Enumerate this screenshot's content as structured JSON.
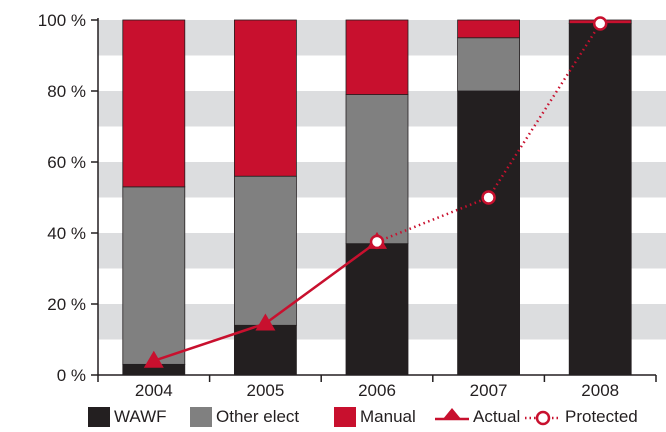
{
  "chart_data": {
    "type": "bar",
    "stacked": true,
    "categories": [
      "2004",
      "2005",
      "2006",
      "2007",
      "2008"
    ],
    "series": [
      {
        "name": "WAWF",
        "color": "#231f20",
        "values": [
          3,
          14,
          37,
          80,
          99
        ]
      },
      {
        "name": "Other elect",
        "color": "#808080",
        "values": [
          50,
          42,
          42,
          15,
          0
        ]
      },
      {
        "name": "Manual",
        "color": "#c8102e",
        "values": [
          47,
          44,
          21,
          5,
          1
        ]
      }
    ],
    "lines": [
      {
        "name": "Actual",
        "color": "#c8102e",
        "marker": "filled-triangle",
        "style": "solid",
        "x": [
          "2004",
          "2005",
          "2006"
        ],
        "values": [
          4,
          14.5,
          37.5
        ]
      },
      {
        "name": "Protected",
        "color": "#c8102e",
        "marker": "open-circle",
        "style": "dotted",
        "x": [
          "2006",
          "2007",
          "2008"
        ],
        "values": [
          37.5,
          50,
          99
        ]
      }
    ],
    "ylim": [
      0,
      100
    ],
    "yticks": [
      "0 %",
      "20 %",
      "40 %",
      "60 %",
      "80 %",
      "100 %"
    ],
    "grid": "alternating-bands",
    "legend_position": "bottom",
    "xlabel": "",
    "ylabel": ""
  }
}
